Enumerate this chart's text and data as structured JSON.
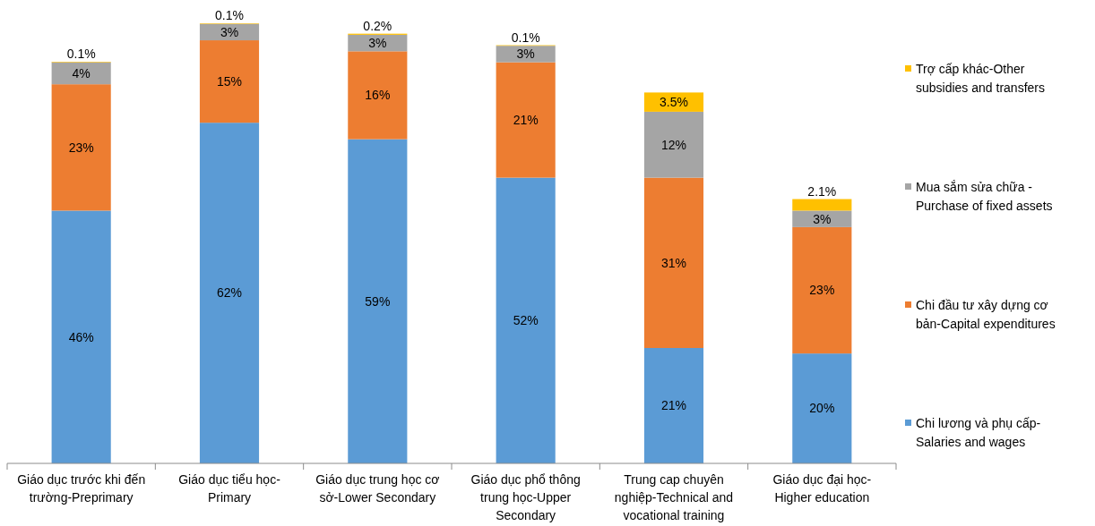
{
  "chart_data": {
    "type": "bar",
    "stacked": true,
    "legend": "right",
    "categories": [
      "Giáo dục trước khi đến trường-Preprimary",
      "Giáo dục tiểu học-Primary",
      "Giáo dục trung học cơ sở-Lower Secondary",
      "Giáo dục phổ thông trung học-Upper Secondary",
      "Trung cap chuyên nghiệp-Technical and vocational training",
      "Giáo dục đại học-Higher education"
    ],
    "series": [
      {
        "name": "Chi lương và phụ cấp-Salaries and wages",
        "color": "#5b9bd5",
        "values": [
          46,
          62,
          59,
          52,
          21,
          20
        ],
        "value_labels": [
          "46%",
          "62%",
          "59%",
          "52%",
          "21%",
          "20%"
        ]
      },
      {
        "name": "Chi đầu tư xây dựng cơ bản-Capital expenditures",
        "color": "#ed7d31",
        "values": [
          23,
          15,
          16,
          21,
          31,
          23
        ],
        "value_labels": [
          "23%",
          "15%",
          "16%",
          "21%",
          "31%",
          "23%"
        ]
      },
      {
        "name": "Mua sắm sửa chữa - Purchase of fixed assets",
        "color": "#a5a5a5",
        "values": [
          4,
          3,
          3,
          3,
          12,
          3
        ],
        "value_labels": [
          "4%",
          "3%",
          "3%",
          "3%",
          "12%",
          "3%"
        ]
      },
      {
        "name": "Trợ cấp khác-Other subsidies and transfers",
        "color": "#ffc000",
        "values": [
          0.1,
          0.1,
          0.2,
          0.1,
          3.5,
          2.1
        ],
        "value_labels": [
          "0.1%",
          "0.1%",
          "0.2%",
          "0.1%",
          "3.5%",
          "2.1%"
        ]
      }
    ]
  }
}
